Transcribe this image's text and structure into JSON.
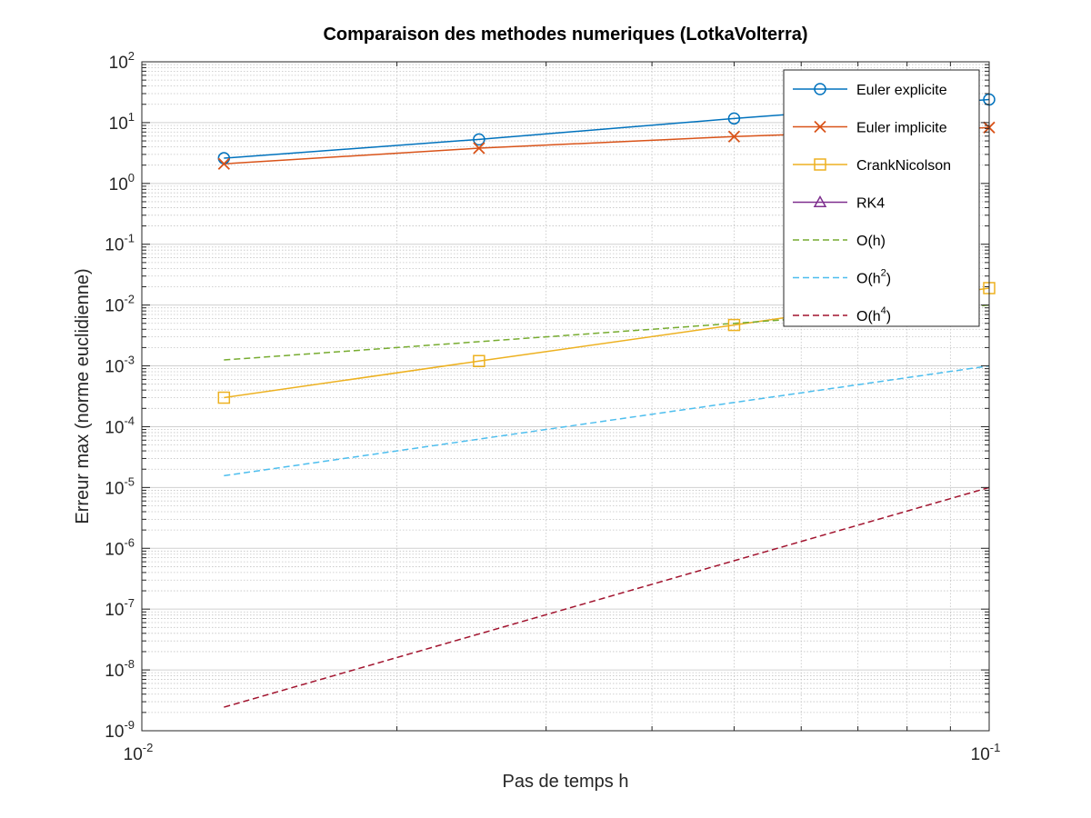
{
  "chart_data": {
    "type": "line",
    "title": "Comparaison des methodes numeriques (LotkaVolterra)",
    "xlabel": "Pas de temps h",
    "ylabel": "Erreur max (norme euclidienne)",
    "xscale": "log",
    "yscale": "log",
    "xlim": [
      0.01,
      0.1
    ],
    "ylim": [
      1e-09,
      100
    ],
    "grid": true,
    "minor_grid": true,
    "legend_position": "top-right",
    "x_ticks": [
      {
        "value": 0.01,
        "base": "10",
        "exp": "-2"
      },
      {
        "value": 0.1,
        "base": "10",
        "exp": "-1"
      }
    ],
    "y_ticks": [
      {
        "value": 1e-09,
        "base": "10",
        "exp": "-9"
      },
      {
        "value": 1e-08,
        "base": "10",
        "exp": "-8"
      },
      {
        "value": 1e-07,
        "base": "10",
        "exp": "-7"
      },
      {
        "value": 1e-06,
        "base": "10",
        "exp": "-6"
      },
      {
        "value": 1e-05,
        "base": "10",
        "exp": "-5"
      },
      {
        "value": 0.0001,
        "base": "10",
        "exp": "-4"
      },
      {
        "value": 0.001,
        "base": "10",
        "exp": "-3"
      },
      {
        "value": 0.01,
        "base": "10",
        "exp": "-2"
      },
      {
        "value": 0.1,
        "base": "10",
        "exp": "-1"
      },
      {
        "value": 1,
        "base": "10",
        "exp": "0"
      },
      {
        "value": 10,
        "base": "10",
        "exp": "1"
      },
      {
        "value": 100,
        "base": "10",
        "exp": "2"
      }
    ],
    "series": [
      {
        "name": "Euler explicite",
        "color": "#0072BD",
        "style": "solid",
        "marker": "circle",
        "x": [
          0.0125,
          0.025,
          0.05,
          0.1
        ],
        "y": [
          2.6,
          5.3,
          11.7,
          24
        ]
      },
      {
        "name": "Euler implicite",
        "color": "#D95319",
        "style": "solid",
        "marker": "x",
        "x": [
          0.0125,
          0.025,
          0.05,
          0.1
        ],
        "y": [
          2.1,
          3.8,
          5.9,
          8.3
        ]
      },
      {
        "name": "CrankNicolson",
        "color": "#EDB120",
        "style": "solid",
        "marker": "square",
        "x": [
          0.0125,
          0.025,
          0.05,
          0.1
        ],
        "y": [
          0.0003,
          0.0012,
          0.0047,
          0.019
        ]
      },
      {
        "name": "RK4",
        "color": "#7E2F8E",
        "style": "solid",
        "marker": "triangle",
        "x": [],
        "y": []
      },
      {
        "name": "O(h)",
        "color": "#77AC30",
        "style": "dashed",
        "marker": "none",
        "x": [
          0.0125,
          0.1
        ],
        "y": [
          0.00125,
          0.01
        ]
      },
      {
        "name": "O(h",
        "sup": "2",
        "name_end": ")",
        "color": "#4DBEEE",
        "style": "dashed",
        "marker": "none",
        "x": [
          0.0125,
          0.1
        ],
        "y": [
          1.5625e-05,
          0.001
        ]
      },
      {
        "name": "O(h",
        "sup": "4",
        "name_end": ")",
        "color": "#A2142F",
        "style": "dashed",
        "marker": "none",
        "x": [
          0.0125,
          0.1
        ],
        "y": [
          2.44e-09,
          1e-05
        ]
      }
    ]
  }
}
